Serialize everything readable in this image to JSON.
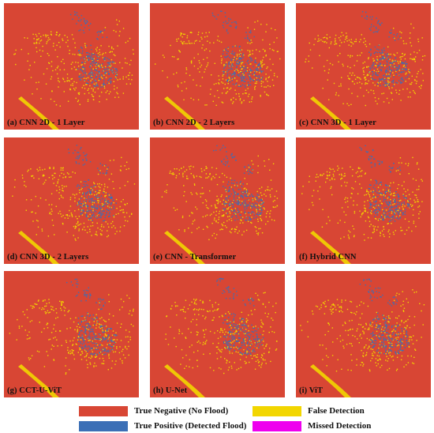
{
  "panels": [
    {
      "caption": "(a) CNN 2D - 1 Layer"
    },
    {
      "caption": "(b) CNN 2D - 2 Layers"
    },
    {
      "caption": "(c) CNN 3D - 1 Layer"
    },
    {
      "caption": "(d) CNN 3D - 2 Layers"
    },
    {
      "caption": "(e) CNN - Transformer"
    },
    {
      "caption": "(f) Hybrid CNN"
    },
    {
      "caption": "(g) CCT-U-ViT"
    },
    {
      "caption": "(h) U-Net"
    },
    {
      "caption": "(i) ViT"
    }
  ],
  "legend": [
    {
      "label": "True Negative (No Flood)",
      "color": "#d84634"
    },
    {
      "label": "True Positive  (Detected Flood)",
      "color": "#3b6fb6"
    },
    {
      "label": "False Detection",
      "color": "#f2d600"
    },
    {
      "label": "Missed Detection",
      "color": "#ee00ee"
    }
  ]
}
